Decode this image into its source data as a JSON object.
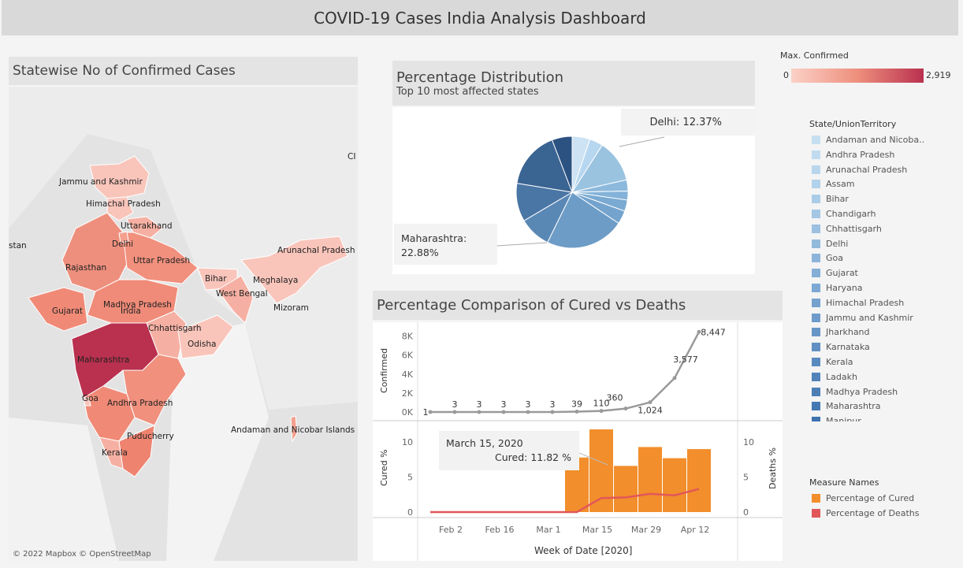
{
  "dashboard": {
    "title": "COVID-19 Cases India Analysis Dashboard"
  },
  "map": {
    "title": "Statewise No of Confirmed Cases",
    "attribution": "© 2022 Mapbox  © OpenStreetMap",
    "edge_labels": [
      "stan",
      "CI",
      "India"
    ],
    "state_labels": [
      "Jammu and Kashmir",
      "Himachal Pradesh",
      "Uttarakhand",
      "Delhi",
      "Uttar Pradesh",
      "Rajasthan",
      "Arunachal Pradesh",
      "Bihar",
      "Meghalaya",
      "West Bengal",
      "Madhya Pradesh",
      "Gujarat",
      "Mizoram",
      "Chhattisgarh",
      "Odisha",
      "Maharashtra",
      "Goa",
      "Andhra Pradesh",
      "Puducherry",
      "Kerala",
      "Andaman and Nicobar Islands"
    ],
    "colors": {
      "low": "#f9c5bb",
      "mid": "#ee8f7d",
      "high": "#b9314f"
    }
  },
  "color_legend": {
    "title": "Max. Confirmed",
    "min": "0",
    "max": "2,919"
  },
  "pie": {
    "title": "Percentage Distribution",
    "subtitle": "Top 10 most affected states",
    "callout_delhi": "Delhi: 12.37%",
    "callout_maha_1": "Maharashtra:",
    "callout_maha_2": "22.88%"
  },
  "combo": {
    "title": "Percentage Comparison of Cured vs Deaths",
    "y1_label": "Confirmed",
    "y2_label": "Cured %",
    "y2r_label": "Deaths %",
    "x_label": "Week of Date [2020]",
    "tooltip_date": "March 15, 2020",
    "tooltip_value": "Cured: 11.82 %"
  },
  "state_legend": {
    "title": "State/UnionTerritory",
    "items": [
      "Andaman and Nicoba..",
      "Andhra Pradesh",
      "Arunachal Pradesh",
      "Assam",
      "Bihar",
      "Chandigarh",
      "Chhattisgarh",
      "Delhi",
      "Goa",
      "Gujarat",
      "Haryana",
      "Himachal Pradesh",
      "Jammu and Kashmir",
      "Jharkhand",
      "Karnataka",
      "Kerala",
      "Ladakh",
      "Madhya Pradesh",
      "Maharashtra",
      "Manipur"
    ]
  },
  "measure_legend": {
    "title": "Measure Names",
    "items": [
      {
        "label": "Percentage of Cured",
        "color": "#f28e2b"
      },
      {
        "label": "Percentage of Deaths",
        "color": "#e15759"
      }
    ]
  },
  "chart_data": [
    {
      "type": "pie",
      "title": "Percentage Distribution",
      "subtitle": "Top 10 most affected states",
      "slices": [
        {
          "name": "Delhi",
          "value": 12.37,
          "color": "#9ac3e0"
        },
        {
          "name": "Maharashtra",
          "value": 22.88,
          "color": "#6d9cc6"
        }
      ]
    },
    {
      "type": "line",
      "title": "Percentage Comparison of Cured vs Deaths",
      "ylabel": "Confirmed",
      "y_ticks": [
        "0K",
        "2K",
        "4K",
        "6K",
        "8K"
      ],
      "ylim": [
        0,
        8800
      ],
      "series": [
        {
          "values": [
            1,
            3,
            3,
            3,
            3,
            3,
            39,
            110,
            360,
            1024,
            3577,
            8447
          ],
          "labels": [
            "1",
            "3",
            "3",
            "3",
            "3",
            "3",
            "39",
            "110",
            "360",
            "1,024",
            "3,577",
            "8,447"
          ]
        }
      ]
    },
    {
      "type": "bar",
      "xlabel": "Week of Date [2020]",
      "ylabel": "Cured %",
      "y2label": "Deaths %",
      "x_ticks": [
        "Feb 2",
        "Feb 16",
        "Mar 1",
        "Mar 15",
        "Mar 29",
        "Apr 12"
      ],
      "y_ticks": [
        "0",
        "5",
        "10"
      ],
      "ylim": [
        0,
        12.5
      ],
      "series": [
        {
          "name": "Percentage of Cured",
          "type": "bar",
          "color": "#f28e2b",
          "values": [
            0,
            0,
            0,
            0,
            0,
            0,
            7.8,
            11.82,
            6.6,
            9.3,
            7.7,
            9.0
          ]
        },
        {
          "name": "Percentage of Deaths",
          "type": "line",
          "color": "#e15759",
          "values": [
            0,
            0,
            0,
            0,
            0,
            0,
            0,
            2.0,
            2.1,
            2.6,
            2.4,
            3.3
          ]
        }
      ]
    }
  ]
}
